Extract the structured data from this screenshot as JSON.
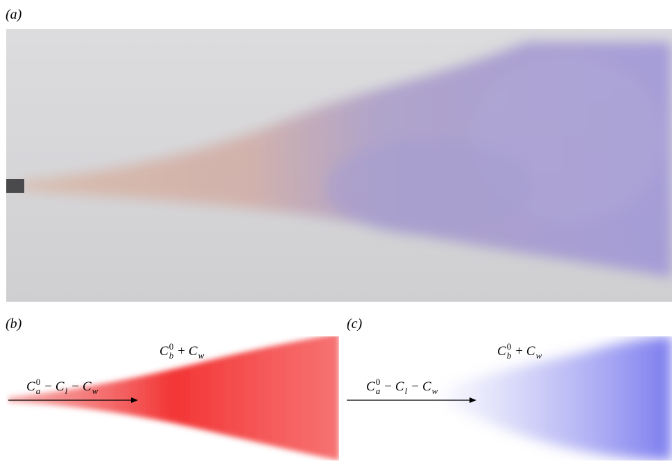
{
  "panels": [
    {
      "label": "(a)"
    },
    {
      "label": "(b)",
      "upper_label": [
        {
          "symbol": "C",
          "sup": "0",
          "sub": "b"
        },
        {
          "symbol": "+"
        },
        {
          "symbol": "C",
          "sub": "w"
        }
      ],
      "arrow_label": [
        {
          "symbol": "C",
          "sup": "0",
          "sub": "a"
        },
        {
          "symbol": "−"
        },
        {
          "symbol": "C",
          "sub": "l"
        },
        {
          "symbol": "−"
        },
        {
          "symbol": "C",
          "sub": "w"
        }
      ]
    },
    {
      "label": "(c)",
      "upper_label": [
        {
          "symbol": "C",
          "sup": "0",
          "sub": "b"
        },
        {
          "symbol": "+"
        },
        {
          "symbol": "C",
          "sub": "w"
        }
      ],
      "arrow_label": [
        {
          "symbol": "C",
          "sup": "0",
          "sub": "a"
        },
        {
          "symbol": "−"
        },
        {
          "symbol": "C",
          "sub": "l"
        },
        {
          "symbol": "−"
        },
        {
          "symbol": "C",
          "sub": "w"
        }
      ]
    }
  ]
}
